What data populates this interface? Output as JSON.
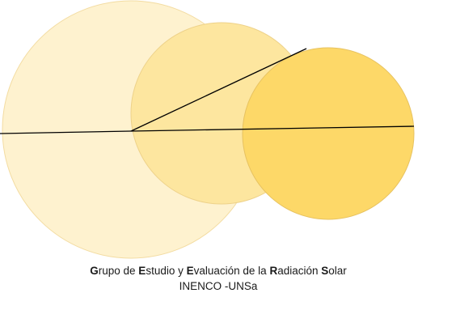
{
  "caption": {
    "line1": {
      "segments": [
        {
          "bold": "G",
          "rest": "rupo de "
        },
        {
          "bold": "E",
          "rest": "studio y "
        },
        {
          "bold": "E",
          "rest": "valuación de la "
        },
        {
          "bold": "R",
          "rest": "adiación "
        },
        {
          "bold": "S",
          "rest": "olar"
        }
      ]
    },
    "line2": "INENCO -UNSa"
  },
  "colors": {
    "circle_large_fill": "#FEF2CF",
    "circle_large_stroke": "#F3DCA2",
    "circle_medium_fill": "#FDE69F",
    "circle_medium_stroke": "#EED28A",
    "circle_small_fill": "#FDD868",
    "circle_small_stroke": "#E7C260",
    "line": "#000000"
  }
}
